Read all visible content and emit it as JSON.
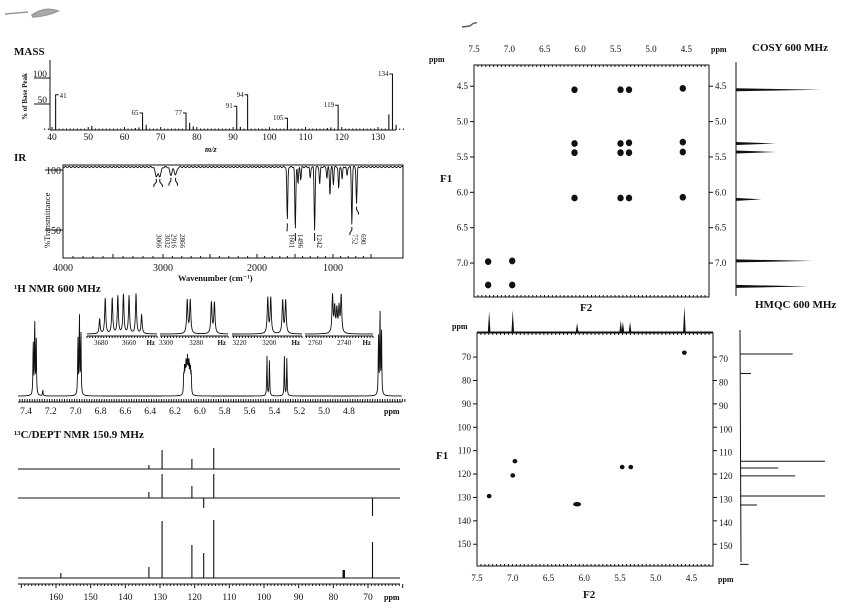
{
  "colors": {
    "ink": "#111111",
    "paper": "#ffffff"
  },
  "chart_data": [
    {
      "id": "mass",
      "type": "bar",
      "title": "MASS",
      "xlabel": "m/z",
      "ylabel": "% of Base Peak",
      "xlim": [
        38,
        137
      ],
      "ylim": [
        0,
        110
      ],
      "xticks": [
        40,
        50,
        60,
        70,
        80,
        90,
        100,
        110,
        120,
        130
      ],
      "yticks": [
        50,
        100
      ],
      "peaks": [
        {
          "mz": 41,
          "value": 60,
          "label": "41"
        },
        {
          "mz": 51,
          "value": 8
        },
        {
          "mz": 63,
          "value": 4
        },
        {
          "mz": 64,
          "value": 5
        },
        {
          "mz": 65,
          "value": 25,
          "label": "65"
        },
        {
          "mz": 66,
          "value": 10
        },
        {
          "mz": 77,
          "value": 25,
          "label": "77"
        },
        {
          "mz": 78,
          "value": 14
        },
        {
          "mz": 79,
          "value": 7
        },
        {
          "mz": 91,
          "value": 38,
          "label": "91"
        },
        {
          "mz": 92,
          "value": 6
        },
        {
          "mz": 94,
          "value": 60,
          "label": "94"
        },
        {
          "mz": 105,
          "value": 15,
          "label": "105"
        },
        {
          "mz": 116,
          "value": 4
        },
        {
          "mz": 117,
          "value": 5
        },
        {
          "mz": 119,
          "value": 40,
          "label": "119"
        },
        {
          "mz": 133,
          "value": 30
        },
        {
          "mz": 134,
          "value": 100,
          "label": "134"
        },
        {
          "mz": 135,
          "value": 10
        }
      ]
    },
    {
      "id": "ir",
      "type": "line",
      "title": "IR",
      "xlabel": "Wavenumber (cm⁻¹)",
      "ylabel": "%Transmittance",
      "xlim": [
        4000,
        500
      ],
      "ylim": [
        27,
        104
      ],
      "xticks": [
        4000,
        3000,
        2000,
        1000
      ],
      "yticks": [
        50,
        100
      ],
      "bands": [
        {
          "wavenumber": 3066,
          "transmittance": 95,
          "label": "3066"
        },
        {
          "wavenumber": 3032,
          "transmittance": 95,
          "label": "3032"
        },
        {
          "wavenumber": 2916,
          "transmittance": 96,
          "label": "2916"
        },
        {
          "wavenumber": 2866,
          "transmittance": 96,
          "label": "2866"
        },
        {
          "wavenumber": 1601,
          "transmittance": 58,
          "label": "1601"
        },
        {
          "wavenumber": 1496,
          "transmittance": 50,
          "label": "1496"
        },
        {
          "wavenumber": 1460,
          "transmittance": 88
        },
        {
          "wavenumber": 1424,
          "transmittance": 92
        },
        {
          "wavenumber": 1300,
          "transmittance": 93
        },
        {
          "wavenumber": 1242,
          "transmittance": 50,
          "label": "1242"
        },
        {
          "wavenumber": 1175,
          "transmittance": 88
        },
        {
          "wavenumber": 1080,
          "transmittance": 93
        },
        {
          "wavenumber": 1040,
          "transmittance": 79
        },
        {
          "wavenumber": 995,
          "transmittance": 88
        },
        {
          "wavenumber": 925,
          "transmittance": 84
        },
        {
          "wavenumber": 880,
          "transmittance": 92
        },
        {
          "wavenumber": 815,
          "transmittance": 95
        },
        {
          "wavenumber": 752,
          "transmittance": 55,
          "label": "752"
        },
        {
          "wavenumber": 690,
          "transmittance": 72,
          "label": "690"
        }
      ]
    },
    {
      "id": "h1",
      "type": "line",
      "title": "¹H NMR 600 MHz",
      "xlabel": "ppm",
      "xlim": [
        7.47,
        4.33
      ],
      "xticks": [
        7.4,
        7.2,
        7.0,
        6.8,
        6.6,
        6.4,
        6.2,
        6.0,
        5.8,
        5.6,
        5.4,
        5.2,
        5.0,
        4.8
      ],
      "peaks": [
        {
          "ppm": 7.33,
          "height": 78
        },
        {
          "ppm": 7.265,
          "height": 6
        },
        {
          "ppm": 6.97,
          "height": 83
        },
        {
          "ppm": 6.1,
          "height": 30
        },
        {
          "ppm": 5.46,
          "height": 40
        },
        {
          "ppm": 5.44,
          "height": 36
        },
        {
          "ppm": 5.32,
          "height": 40
        },
        {
          "ppm": 5.3,
          "height": 38
        },
        {
          "ppm": 4.55,
          "height": 88
        }
      ],
      "insets": [
        {
          "range_hz": [
            3690,
            3640
          ],
          "ticks": [
            "3680",
            "3660"
          ],
          "unit": "Hz",
          "lines_hz": [
            3681,
            3677,
            3672,
            3668,
            3664,
            3660,
            3655,
            3651
          ],
          "heights": [
            0.35,
            0.85,
            0.85,
            0.9,
            0.95,
            0.9,
            0.95,
            0.45
          ]
        },
        {
          "range_hz": [
            3304,
            3259
          ],
          "ticks": [
            "3300",
            "3280"
          ],
          "unit": "Hz",
          "lines_hz": [
            3286,
            3284,
            3270,
            3268
          ],
          "heights": [
            0.8,
            0.8,
            0.75,
            0.75
          ]
        },
        {
          "range_hz": [
            3225,
            3178
          ],
          "ticks": [
            "3220",
            "3200"
          ],
          "unit": "Hz",
          "lines_hz": [
            3201,
            3199,
            3191,
            3189
          ],
          "heights": [
            0.85,
            0.85,
            0.8,
            0.8
          ]
        },
        {
          "range_hz": [
            2767,
            2720
          ],
          "ticks": [
            "2760",
            "2740"
          ],
          "unit": "Hz",
          "lines_hz": [
            2748,
            2746.5,
            2745,
            2743.5,
            2742
          ],
          "heights": [
            0.9,
            0.6,
            0.55,
            0.6,
            0.9
          ]
        }
      ]
    },
    {
      "id": "c13",
      "type": "bar",
      "title": "¹³C/DEPT NMR 150.9 MHz",
      "xlabel": "ppm",
      "xlim": [
        171,
        60
      ],
      "xticks": [
        160,
        150,
        140,
        130,
        120,
        110,
        100,
        90,
        80,
        70
      ],
      "traces": [
        {
          "peaks": [
            {
              "ppm": 133.2,
              "height": 4
            },
            {
              "ppm": 129.4,
              "height": 19
            },
            {
              "ppm": 120.8,
              "height": 10
            },
            {
              "ppm": 114.5,
              "height": 21
            }
          ]
        },
        {
          "peaks": [
            {
              "ppm": 133.2,
              "height": 6
            },
            {
              "ppm": 129.4,
              "height": 24
            },
            {
              "ppm": 120.8,
              "height": 12
            },
            {
              "ppm": 117.4,
              "height": -10
            },
            {
              "ppm": 114.5,
              "height": 24
            },
            {
              "ppm": 68.7,
              "height": -18
            }
          ]
        },
        {
          "peaks": [
            {
              "ppm": 158.6,
              "height": 5
            },
            {
              "ppm": 133.2,
              "height": 11
            },
            {
              "ppm": 129.4,
              "height": 57
            },
            {
              "ppm": 120.8,
              "height": 33
            },
            {
              "ppm": 117.4,
              "height": 25
            },
            {
              "ppm": 114.5,
              "height": 58
            },
            {
              "ppm": 77.2,
              "height": 8
            },
            {
              "ppm": 77.0,
              "height": 8
            },
            {
              "ppm": 76.8,
              "height": 8
            },
            {
              "ppm": 68.7,
              "height": 36
            }
          ]
        }
      ]
    },
    {
      "id": "cosy",
      "type": "scatter",
      "title": "COSY 600 MHz",
      "xlabel": "F2",
      "ylabel": "F1",
      "unit": "ppm",
      "xlim": [
        7.5,
        4.18
      ],
      "ylim": [
        4.2,
        7.48
      ],
      "xticks": [
        7.5,
        7.0,
        6.5,
        6.0,
        5.5,
        5.0,
        4.5
      ],
      "yticks": [
        4.5,
        5.0,
        5.5,
        6.0,
        6.5,
        7.0
      ],
      "crosspeaks": [
        [
          6.08,
          4.55
        ],
        [
          5.43,
          4.55
        ],
        [
          5.31,
          4.55
        ],
        [
          4.55,
          4.53
        ],
        [
          6.08,
          5.31
        ],
        [
          5.43,
          5.31
        ],
        [
          5.31,
          5.3
        ],
        [
          4.55,
          5.29
        ],
        [
          6.08,
          5.44
        ],
        [
          5.43,
          5.44
        ],
        [
          5.31,
          5.44
        ],
        [
          4.55,
          5.43
        ],
        [
          6.08,
          6.08
        ],
        [
          5.43,
          6.08
        ],
        [
          5.31,
          6.08
        ],
        [
          4.55,
          6.07
        ],
        [
          7.3,
          6.98
        ],
        [
          6.96,
          6.97
        ],
        [
          7.3,
          7.31
        ],
        [
          6.96,
          7.31
        ]
      ],
      "projection": [
        {
          "ppm": 4.55,
          "height": 1.0
        },
        {
          "ppm": 5.31,
          "height": 0.47
        },
        {
          "ppm": 5.43,
          "height": 0.47
        },
        {
          "ppm": 6.1,
          "height": 0.3
        },
        {
          "ppm": 6.97,
          "height": 0.9
        },
        {
          "ppm": 7.33,
          "height": 0.85
        }
      ]
    },
    {
      "id": "hmqc",
      "type": "scatter",
      "title": "HMQC 600 MHz",
      "xlabel": "F2",
      "ylabel": "F1",
      "unit": "ppm",
      "xlim": [
        7.5,
        4.2
      ],
      "ylim": [
        59.7,
        159.3
      ],
      "xticks": [
        7.5,
        7.0,
        6.5,
        6.0,
        5.5,
        5.0,
        4.5
      ],
      "yticks": [
        70,
        80,
        90,
        100,
        110,
        120,
        130,
        140,
        150
      ],
      "crosspeaks": [
        [
          4.6,
          68.1
        ],
        [
          6.97,
          114.5
        ],
        [
          7.0,
          120.6
        ],
        [
          7.33,
          129.4
        ],
        [
          6.1,
          132.9
        ],
        [
          5.47,
          117.0
        ],
        [
          5.35,
          117.0
        ]
      ],
      "projection_f2": [
        {
          "ppm": 7.33,
          "height": 0.8
        },
        {
          "ppm": 7.0,
          "height": 0.85
        },
        {
          "ppm": 6.1,
          "height": 0.35
        },
        {
          "ppm": 5.49,
          "height": 0.45
        },
        {
          "ppm": 5.46,
          "height": 0.4
        },
        {
          "ppm": 5.36,
          "height": 0.4
        },
        {
          "ppm": 4.6,
          "height": 1.0
        }
      ],
      "projection_f1": [
        {
          "ppm": 68.7,
          "height": 0.62
        },
        {
          "ppm": 77.0,
          "height": 0.13
        },
        {
          "ppm": 114.5,
          "height": 1.0
        },
        {
          "ppm": 117.4,
          "height": 0.45
        },
        {
          "ppm": 120.8,
          "height": 0.65
        },
        {
          "ppm": 129.4,
          "height": 1.0
        },
        {
          "ppm": 133.2,
          "height": 0.2
        },
        {
          "ppm": 158.6,
          "height": 0.1
        }
      ]
    }
  ]
}
